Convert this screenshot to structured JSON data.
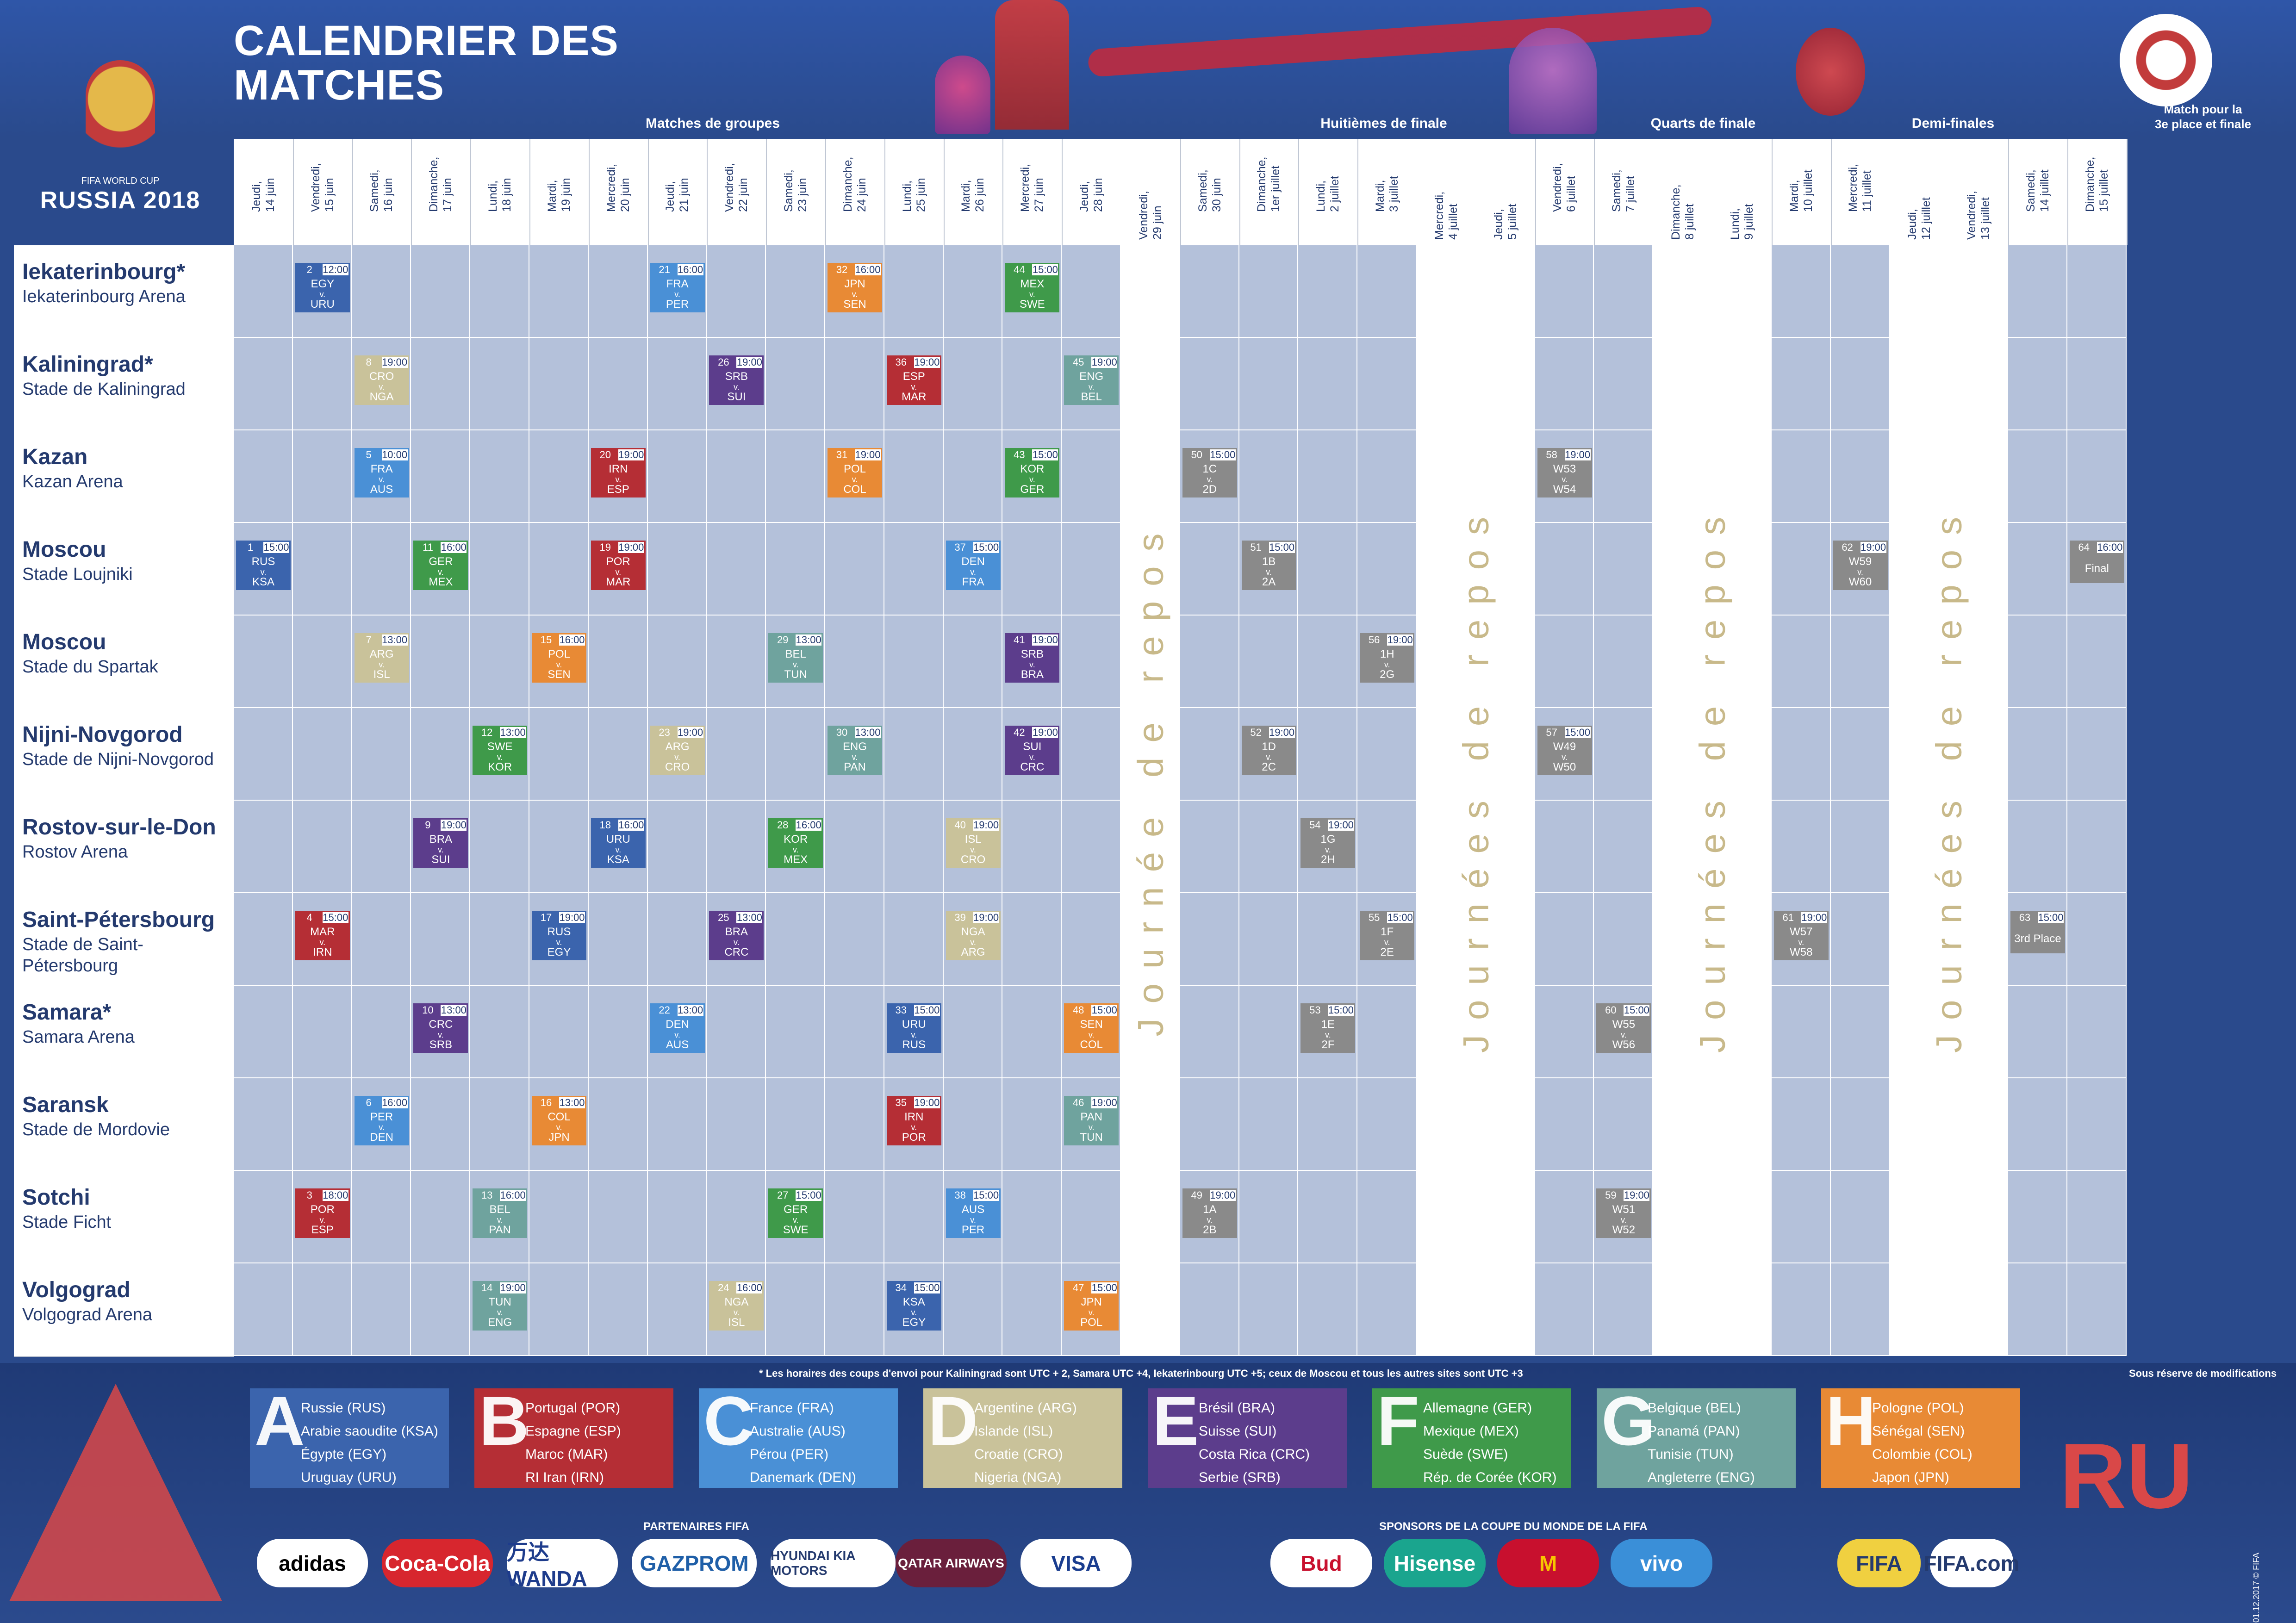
{
  "title_line1": "CALENDRIER DES",
  "title_line2": "MATCHES",
  "logo": {
    "line1": "FIFA WORLD CUP",
    "line2": "RUSSIA 2018"
  },
  "phases": {
    "groups": "Matches de groupes",
    "r16": "Huitièmes de finale",
    "qf": "Quarts de finale",
    "sf": "Demi-finales",
    "final_l1": "Match pour la",
    "final_l2": "3e place et finale"
  },
  "days": [
    "Jeudi,\n14 juin",
    "Vendredi,\n15 juin",
    "Samedi,\n16 juin",
    "Dimanche,\n17 juin",
    "Lundi,\n18 juin",
    "Mardi,\n19 juin",
    "Mercredi,\n20 juin",
    "Jeudi,\n21 juin",
    "Vendredi,\n22 juin",
    "Samedi,\n23 juin",
    "Dimanche,\n24 juin",
    "Lundi,\n25 juin",
    "Mardi,\n26 juin",
    "Mercredi,\n27 juin",
    "Jeudi,\n28 juin",
    "Vendredi,\n29 juin",
    "Samedi,\n30 juin",
    "Dimanche,\n1er juillet",
    "Lundi,\n2 juillet",
    "Mardi,\n3 juillet",
    "Mercredi,\n4 juillet",
    "Jeudi,\n5 juillet",
    "Vendredi,\n6 juillet",
    "Samedi,\n7 juillet",
    "Dimanche,\n8 juillet",
    "Lundi,\n9 juillet",
    "Mardi,\n10 juillet",
    "Mercredi,\n11 juillet",
    "Jeudi,\n12 juillet",
    "Vendredi,\n13 juillet",
    "Samedi,\n14 juillet",
    "Dimanche,\n15 juillet"
  ],
  "rest_label_single": "Journée de repos",
  "rest_label_plural": "Journées de repos",
  "venues": [
    {
      "city": "Iekaterinbourg*",
      "stadium": "Iekaterinbourg Arena"
    },
    {
      "city": "Kaliningrad*",
      "stadium": "Stade de Kaliningrad"
    },
    {
      "city": "Kazan",
      "stadium": "Kazan Arena"
    },
    {
      "city": "Moscou",
      "stadium": "Stade Loujniki"
    },
    {
      "city": "Moscou",
      "stadium": "Stade du Spartak"
    },
    {
      "city": "Nijni-Novgorod",
      "stadium": "Stade de Nijni-Novgorod"
    },
    {
      "city": "Rostov-sur-le-Don",
      "stadium": "Rostov Arena"
    },
    {
      "city": "Saint-Pétersbourg",
      "stadium": "Stade de Saint-Pétersbourg"
    },
    {
      "city": "Samara*",
      "stadium": "Samara Arena"
    },
    {
      "city": "Saransk",
      "stadium": "Stade de Mordovie"
    },
    {
      "city": "Sotchi",
      "stadium": "Stade Ficht"
    },
    {
      "city": "Volgograd",
      "stadium": "Volgograd Arena"
    }
  ],
  "colors": {
    "A": "#3b64ad",
    "B": "#b52e35",
    "C": "#4a90d6",
    "D": "#c9c29a",
    "E": "#5c3d8c",
    "F": "#3f9a4a",
    "G": "#6fa39e",
    "H": "#e88a35",
    "KO": "#8a8a8a"
  },
  "vs": "v.",
  "matches": [
    {
      "n": "1",
      "time": "15:00",
      "row": 3,
      "col": 0,
      "g": "A",
      "t1": "RUS",
      "t2": "KSA"
    },
    {
      "n": "2",
      "time": "12:00",
      "row": 0,
      "col": 1,
      "g": "A",
      "t1": "EGY",
      "t2": "URU"
    },
    {
      "n": "3",
      "time": "18:00",
      "row": 10,
      "col": 1,
      "g": "B",
      "t1": "POR",
      "t2": "ESP"
    },
    {
      "n": "4",
      "time": "15:00",
      "row": 7,
      "col": 1,
      "g": "B",
      "t1": "MAR",
      "t2": "IRN"
    },
    {
      "n": "5",
      "time": "10:00",
      "row": 2,
      "col": 2,
      "g": "C",
      "t1": "FRA",
      "t2": "AUS"
    },
    {
      "n": "6",
      "time": "16:00",
      "row": 9,
      "col": 2,
      "g": "C",
      "t1": "PER",
      "t2": "DEN"
    },
    {
      "n": "7",
      "time": "13:00",
      "row": 4,
      "col": 2,
      "g": "D",
      "t1": "ARG",
      "t2": "ISL"
    },
    {
      "n": "8",
      "time": "19:00",
      "row": 1,
      "col": 2,
      "g": "D",
      "t1": "CRO",
      "t2": "NGA"
    },
    {
      "n": "9",
      "time": "19:00",
      "row": 6,
      "col": 3,
      "g": "E",
      "t1": "BRA",
      "t2": "SUI"
    },
    {
      "n": "10",
      "time": "13:00",
      "row": 8,
      "col": 3,
      "g": "E",
      "t1": "CRC",
      "t2": "SRB"
    },
    {
      "n": "11",
      "time": "16:00",
      "row": 3,
      "col": 3,
      "g": "F",
      "t1": "GER",
      "t2": "MEX"
    },
    {
      "n": "12",
      "time": "13:00",
      "row": 5,
      "col": 4,
      "g": "F",
      "t1": "SWE",
      "t2": "KOR"
    },
    {
      "n": "13",
      "time": "16:00",
      "row": 10,
      "col": 4,
      "g": "G",
      "t1": "BEL",
      "t2": "PAN"
    },
    {
      "n": "14",
      "time": "19:00",
      "row": 11,
      "col": 4,
      "g": "G",
      "t1": "TUN",
      "t2": "ENG"
    },
    {
      "n": "15",
      "time": "16:00",
      "row": 4,
      "col": 5,
      "g": "H",
      "t1": "POL",
      "t2": "SEN"
    },
    {
      "n": "16",
      "time": "13:00",
      "row": 9,
      "col": 5,
      "g": "H",
      "t1": "COL",
      "t2": "JPN"
    },
    {
      "n": "17",
      "time": "19:00",
      "row": 7,
      "col": 5,
      "g": "A",
      "t1": "RUS",
      "t2": "EGY"
    },
    {
      "n": "18",
      "time": "16:00",
      "row": 6,
      "col": 6,
      "g": "A",
      "t1": "URU",
      "t2": "KSA"
    },
    {
      "n": "19",
      "time": "19:00",
      "row": 3,
      "col": 6,
      "g": "B",
      "t1": "POR",
      "t2": "MAR"
    },
    {
      "n": "20",
      "time": "19:00",
      "row": 2,
      "col": 6,
      "g": "B",
      "t1": "IRN",
      "t2": "ESP"
    },
    {
      "n": "21",
      "time": "16:00",
      "row": 0,
      "col": 7,
      "g": "C",
      "t1": "FRA",
      "t2": "PER"
    },
    {
      "n": "22",
      "time": "13:00",
      "row": 8,
      "col": 7,
      "g": "C",
      "t1": "DEN",
      "t2": "AUS"
    },
    {
      "n": "23",
      "time": "19:00",
      "row": 5,
      "col": 7,
      "g": "D",
      "t1": "ARG",
      "t2": "CRO"
    },
    {
      "n": "24",
      "time": "16:00",
      "row": 11,
      "col": 8,
      "g": "D",
      "t1": "NGA",
      "t2": "ISL"
    },
    {
      "n": "25",
      "time": "13:00",
      "row": 7,
      "col": 8,
      "g": "E",
      "t1": "BRA",
      "t2": "CRC"
    },
    {
      "n": "26",
      "time": "19:00",
      "row": 1,
      "col": 8,
      "g": "E",
      "t1": "SRB",
      "t2": "SUI"
    },
    {
      "n": "27",
      "time": "15:00",
      "row": 10,
      "col": 9,
      "g": "F",
      "t1": "GER",
      "t2": "SWE"
    },
    {
      "n": "28",
      "time": "16:00",
      "row": 6,
      "col": 9,
      "g": "F",
      "t1": "KOR",
      "t2": "MEX"
    },
    {
      "n": "29",
      "time": "13:00",
      "row": 4,
      "col": 9,
      "g": "G",
      "t1": "BEL",
      "t2": "TUN"
    },
    {
      "n": "30",
      "time": "13:00",
      "row": 5,
      "col": 10,
      "g": "G",
      "t1": "ENG",
      "t2": "PAN"
    },
    {
      "n": "31",
      "time": "19:00",
      "row": 2,
      "col": 10,
      "g": "H",
      "t1": "POL",
      "t2": "COL"
    },
    {
      "n": "32",
      "time": "16:00",
      "row": 0,
      "col": 10,
      "g": "H",
      "t1": "JPN",
      "t2": "SEN"
    },
    {
      "n": "33",
      "time": "15:00",
      "row": 8,
      "col": 11,
      "g": "A",
      "t1": "URU",
      "t2": "RUS"
    },
    {
      "n": "34",
      "time": "15:00",
      "row": 11,
      "col": 11,
      "g": "A",
      "t1": "KSA",
      "t2": "EGY"
    },
    {
      "n": "35",
      "time": "19:00",
      "row": 9,
      "col": 11,
      "g": "B",
      "t1": "IRN",
      "t2": "POR"
    },
    {
      "n": "36",
      "time": "19:00",
      "row": 1,
      "col": 11,
      "g": "B",
      "t1": "ESP",
      "t2": "MAR"
    },
    {
      "n": "37",
      "time": "15:00",
      "row": 3,
      "col": 12,
      "g": "C",
      "t1": "DEN",
      "t2": "FRA"
    },
    {
      "n": "38",
      "time": "15:00",
      "row": 10,
      "col": 12,
      "g": "C",
      "t1": "AUS",
      "t2": "PER"
    },
    {
      "n": "39",
      "time": "19:00",
      "row": 7,
      "col": 12,
      "g": "D",
      "t1": "NGA",
      "t2": "ARG"
    },
    {
      "n": "40",
      "time": "19:00",
      "row": 6,
      "col": 12,
      "g": "D",
      "t1": "ISL",
      "t2": "CRO"
    },
    {
      "n": "41",
      "time": "19:00",
      "row": 4,
      "col": 13,
      "g": "E",
      "t1": "SRB",
      "t2": "BRA"
    },
    {
      "n": "42",
      "time": "19:00",
      "row": 5,
      "col": 13,
      "g": "E",
      "t1": "SUI",
      "t2": "CRC"
    },
    {
      "n": "43",
      "time": "15:00",
      "row": 2,
      "col": 13,
      "g": "F",
      "t1": "KOR",
      "t2": "GER"
    },
    {
      "n": "44",
      "time": "15:00",
      "row": 0,
      "col": 13,
      "g": "F",
      "t1": "MEX",
      "t2": "SWE"
    },
    {
      "n": "45",
      "time": "19:00",
      "row": 1,
      "col": 14,
      "g": "G",
      "t1": "ENG",
      "t2": "BEL"
    },
    {
      "n": "46",
      "time": "19:00",
      "row": 9,
      "col": 14,
      "g": "G",
      "t1": "PAN",
      "t2": "TUN"
    },
    {
      "n": "47",
      "time": "15:00",
      "row": 11,
      "col": 14,
      "g": "H",
      "t1": "JPN",
      "t2": "POL"
    },
    {
      "n": "48",
      "time": "15:00",
      "row": 8,
      "col": 14,
      "g": "H",
      "t1": "SEN",
      "t2": "COL"
    },
    {
      "n": "49",
      "time": "19:00",
      "row": 10,
      "col": 16,
      "g": "KO",
      "t1": "1A",
      "t2": "2B"
    },
    {
      "n": "50",
      "time": "15:00",
      "row": 2,
      "col": 16,
      "g": "KO",
      "t1": "1C",
      "t2": "2D"
    },
    {
      "n": "51",
      "time": "15:00",
      "row": 3,
      "col": 17,
      "g": "KO",
      "t1": "1B",
      "t2": "2A"
    },
    {
      "n": "52",
      "time": "19:00",
      "row": 5,
      "col": 17,
      "g": "KO",
      "t1": "1D",
      "t2": "2C"
    },
    {
      "n": "53",
      "time": "15:00",
      "row": 8,
      "col": 18,
      "g": "KO",
      "t1": "1E",
      "t2": "2F"
    },
    {
      "n": "54",
      "time": "19:00",
      "row": 6,
      "col": 18,
      "g": "KO",
      "t1": "1G",
      "t2": "2H"
    },
    {
      "n": "55",
      "time": "15:00",
      "row": 7,
      "col": 19,
      "g": "KO",
      "t1": "1F",
      "t2": "2E"
    },
    {
      "n": "56",
      "time": "19:00",
      "row": 4,
      "col": 19,
      "g": "KO",
      "t1": "1H",
      "t2": "2G"
    },
    {
      "n": "57",
      "time": "15:00",
      "row": 5,
      "col": 22,
      "g": "KO",
      "t1": "W49",
      "t2": "W50"
    },
    {
      "n": "58",
      "time": "19:00",
      "row": 2,
      "col": 22,
      "g": "KO",
      "t1": "W53",
      "t2": "W54"
    },
    {
      "n": "59",
      "time": "19:00",
      "row": 10,
      "col": 23,
      "g": "KO",
      "t1": "W51",
      "t2": "W52"
    },
    {
      "n": "60",
      "time": "15:00",
      "row": 8,
      "col": 23,
      "g": "KO",
      "t1": "W55",
      "t2": "W56"
    },
    {
      "n": "61",
      "time": "19:00",
      "row": 7,
      "col": 26,
      "g": "KO",
      "t1": "W57",
      "t2": "W58"
    },
    {
      "n": "62",
      "time": "19:00",
      "row": 3,
      "col": 27,
      "g": "KO",
      "t1": "W59",
      "t2": "W60"
    },
    {
      "n": "63",
      "time": "15:00",
      "row": 7,
      "col": 30,
      "g": "KO",
      "label": "3rd Place"
    },
    {
      "n": "64",
      "time": "16:00",
      "row": 3,
      "col": 31,
      "g": "KO",
      "label": "Final"
    }
  ],
  "footnote": "* Les horaires des coups d'envoi pour Kaliningrad sont UTC + 2, Samara UTC +4, Iekaterinbourg UTC +5; ceux de Moscou et tous les autres sites sont UTC +3",
  "reserve": "Sous réserve de modifications",
  "groups": [
    {
      "letter": "A",
      "teams": [
        "Russie (RUS)",
        "Arabie saoudite (KSA)",
        "Égypte (EGY)",
        "Uruguay (URU)"
      ]
    },
    {
      "letter": "B",
      "teams": [
        "Portugal (POR)",
        "Espagne (ESP)",
        "Maroc (MAR)",
        "RI Iran (IRN)"
      ]
    },
    {
      "letter": "C",
      "teams": [
        "France (FRA)",
        "Australie (AUS)",
        "Pérou (PER)",
        "Danemark (DEN)"
      ]
    },
    {
      "letter": "D",
      "teams": [
        "Argentine (ARG)",
        "Islande (ISL)",
        "Croatie (CRO)",
        "Nigeria (NGA)"
      ]
    },
    {
      "letter": "E",
      "teams": [
        "Brésil (BRA)",
        "Suisse (SUI)",
        "Costa Rica (CRC)",
        "Serbie (SRB)"
      ]
    },
    {
      "letter": "F",
      "teams": [
        "Allemagne (GER)",
        "Mexique (MEX)",
        "Suède (SWE)",
        "Rép. de Corée (KOR)"
      ]
    },
    {
      "letter": "G",
      "teams": [
        "Belgique (BEL)",
        "Panamá (PAN)",
        "Tunisie (TUN)",
        "Angleterre (ENG)"
      ]
    },
    {
      "letter": "H",
      "teams": [
        "Pologne (POL)",
        "Sénégal (SEN)",
        "Colombie (COL)",
        "Japon (JPN)"
      ]
    }
  ],
  "partners_label": "PARTENAIRES FIFA",
  "sponsors_label": "SPONSORS DE LA COUPE DU MONDE DE LA FIFA",
  "partners": [
    {
      "name": "adidas",
      "bg": "#ffffff",
      "fg": "#000000"
    },
    {
      "name": "Coca-Cola",
      "bg": "#d7262e",
      "fg": "#ffffff"
    },
    {
      "name": "万达WANDA",
      "bg": "#ffffff",
      "fg": "#1e3c8c"
    },
    {
      "name": "GAZPROM",
      "bg": "#ffffff",
      "fg": "#1f5fa8"
    },
    {
      "name": "HYUNDAI KIA MOTORS",
      "bg": "#ffffff",
      "fg": "#243a6e"
    },
    {
      "name": "QATAR AIRWAYS",
      "bg": "#6a1f3c",
      "fg": "#ffffff"
    },
    {
      "name": "VISA",
      "bg": "#ffffff",
      "fg": "#1a3d8f"
    }
  ],
  "sponsors": [
    {
      "name": "Bud",
      "bg": "#ffffff",
      "fg": "#c8102e"
    },
    {
      "name": "Hisense",
      "bg": "#1aa58e",
      "fg": "#ffffff"
    },
    {
      "name": "M",
      "bg": "#c8102e",
      "fg": "#f7c600"
    },
    {
      "name": "vivo",
      "bg": "#3a8fd8",
      "fg": "#ffffff"
    }
  ],
  "fifa_logos": [
    {
      "name": "FIFA",
      "bg": "#f0d040",
      "fg": "#243a6e"
    },
    {
      "name": "FIFA.com",
      "bg": "#ffffff",
      "fg": "#243a6e"
    }
  ],
  "corner_text": "01.12.2017 © FIFA"
}
